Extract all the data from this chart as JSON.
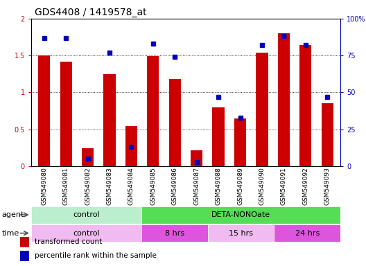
{
  "title": "GDS4408 / 1419578_at",
  "samples": [
    "GSM549080",
    "GSM549081",
    "GSM549082",
    "GSM549083",
    "GSM549084",
    "GSM549085",
    "GSM549086",
    "GSM549087",
    "GSM549088",
    "GSM549089",
    "GSM549090",
    "GSM549091",
    "GSM549092",
    "GSM549093"
  ],
  "red_values": [
    1.5,
    1.42,
    0.24,
    1.25,
    0.54,
    1.49,
    1.18,
    0.22,
    0.8,
    0.65,
    1.54,
    1.8,
    1.64,
    0.85
  ],
  "blue_values": [
    87,
    87,
    5,
    77,
    13,
    83,
    74,
    3,
    47,
    33,
    82,
    88,
    82,
    47
  ],
  "red_color": "#cc0000",
  "blue_color": "#0000bb",
  "ylim_left": [
    0,
    2
  ],
  "ylim_right": [
    0,
    100
  ],
  "yticks_left": [
    0,
    0.5,
    1.0,
    1.5,
    2.0
  ],
  "ytick_labels_left": [
    "0",
    "0.5",
    "1",
    "1.5",
    "2"
  ],
  "yticks_right": [
    0,
    25,
    50,
    75,
    100
  ],
  "ytick_labels_right": [
    "0",
    "25",
    "50",
    "75",
    "100%"
  ],
  "grid_values": [
    0.5,
    1.0,
    1.5
  ],
  "bar_width": 0.55,
  "blue_marker_size": 5,
  "title_fontsize": 10,
  "tick_fontsize": 7,
  "label_fontsize": 8,
  "legend_fontsize": 7.5,
  "agent_control_color": "#bbeecc",
  "agent_deta_color": "#55dd55",
  "time_control_color": "#f0bbf0",
  "time_8hrs_color": "#dd55dd",
  "time_15hrs_color": "#f0bbf0",
  "time_24hrs_color": "#dd55dd"
}
